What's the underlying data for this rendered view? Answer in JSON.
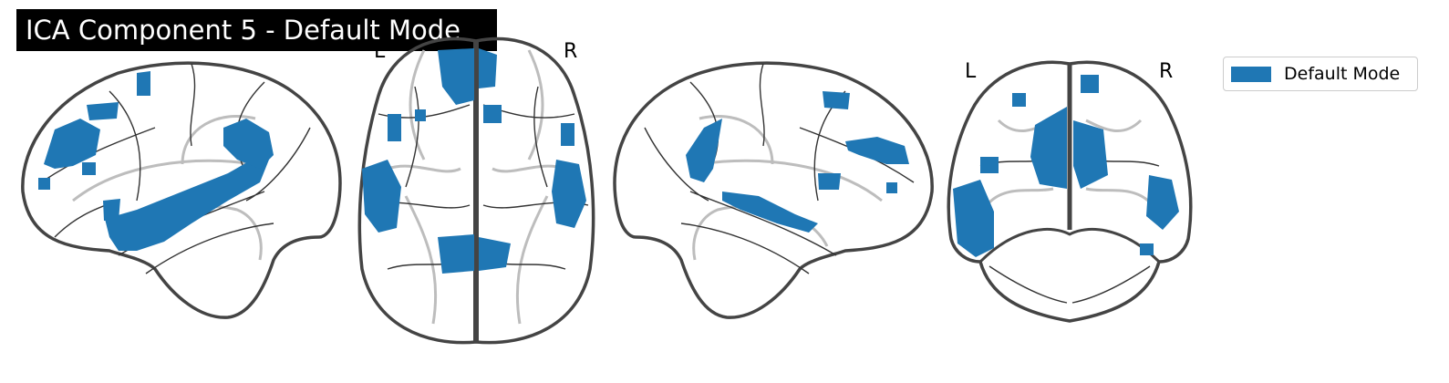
{
  "title": "ICA Component 5 - Default Mode",
  "axial_labels": {
    "left": "L",
    "right": "R"
  },
  "coronal_labels": {
    "left": "L",
    "right": "R"
  },
  "legend": {
    "label": "Default Mode"
  },
  "colors": {
    "activation": "#1f77b4",
    "outline": "#444444",
    "background": "#ffffff"
  },
  "views": [
    "sagittal-left",
    "axial",
    "sagittal-right",
    "coronal"
  ]
}
